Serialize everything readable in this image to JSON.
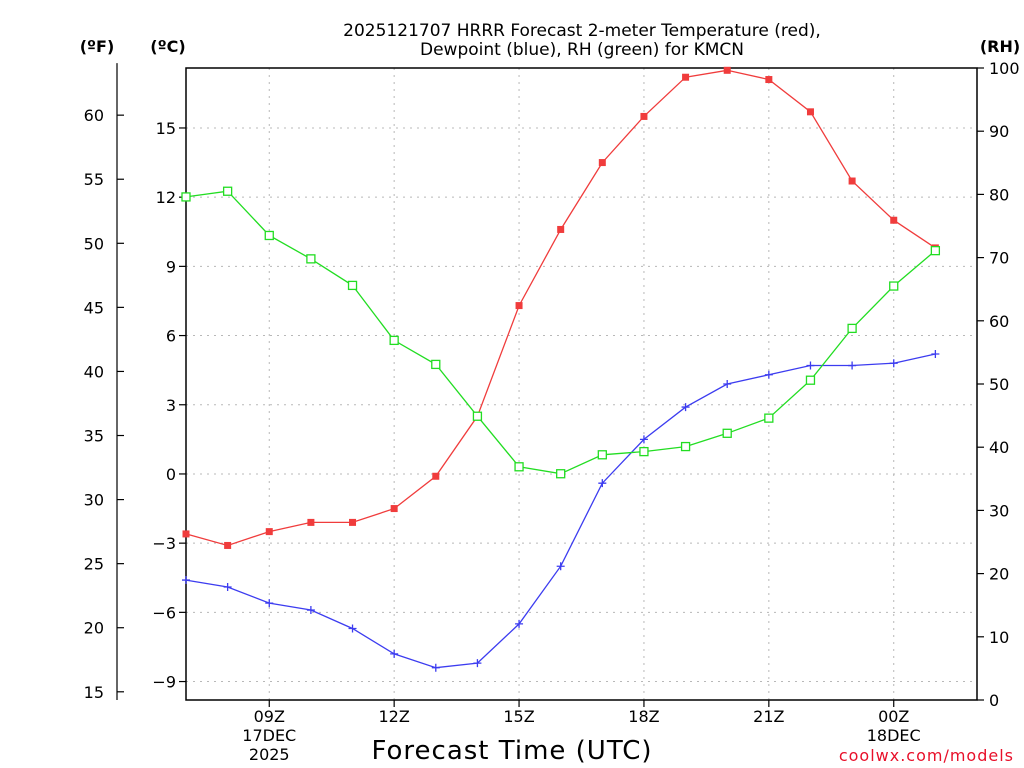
{
  "chart_data": {
    "type": "line",
    "title_line1": "2025121707 HRRR Forecast 2-meter Temperature (red),",
    "title_line2": "Dewpoint (blue), RH (green) for KMCN",
    "units": {
      "fahrenheit": "(ºF)",
      "celsius": "(ºC)",
      "rh": "(RH)"
    },
    "xlabel": "Forecast Time (UTC)",
    "credit": "coolwx.com/models",
    "x": [
      7,
      8,
      9,
      10,
      11,
      12,
      13,
      14,
      15,
      16,
      17,
      18,
      19,
      20,
      21,
      22,
      23,
      24,
      25
    ],
    "xlim": [
      7,
      26
    ],
    "x_ticks": [
      {
        "hour": 9,
        "label": "09Z",
        "sub1": "17DEC",
        "sub2": "2025"
      },
      {
        "hour": 12,
        "label": "12Z",
        "sub1": "",
        "sub2": ""
      },
      {
        "hour": 15,
        "label": "15Z",
        "sub1": "",
        "sub2": ""
      },
      {
        "hour": 18,
        "label": "18Z",
        "sub1": "",
        "sub2": ""
      },
      {
        "hour": 21,
        "label": "21Z",
        "sub1": "",
        "sub2": ""
      },
      {
        "hour": 24,
        "label": "00Z",
        "sub1": "18DEC",
        "sub2": ""
      }
    ],
    "celsius_axis": {
      "ylim": [
        -9.8,
        17.6
      ],
      "ticks": [
        -9,
        -6,
        -3,
        0,
        3,
        6,
        9,
        12,
        15
      ],
      "tick_labels": [
        "−9",
        "−6",
        "−3",
        "0",
        "3",
        "6",
        "9",
        "12",
        "15"
      ]
    },
    "fahrenheit_axis": {
      "ticks": [
        15,
        20,
        25,
        30,
        35,
        40,
        45,
        50,
        55,
        60
      ]
    },
    "rh_axis": {
      "ylim": [
        0,
        100
      ],
      "ticks": [
        0,
        10,
        20,
        30,
        40,
        50,
        60,
        70,
        80,
        90,
        100
      ]
    },
    "series": [
      {
        "name": "Temperature",
        "color": "#f03c3c",
        "marker": "filled-square",
        "axis": "celsius",
        "values": [
          -2.6,
          -3.1,
          -2.5,
          -2.1,
          -2.1,
          -1.5,
          -0.1,
          2.5,
          7.3,
          10.6,
          13.5,
          15.5,
          17.2,
          17.5,
          17.1,
          15.7,
          12.7,
          11.0,
          9.8
        ]
      },
      {
        "name": "Dewpoint",
        "color": "#3c3cf0",
        "marker": "plus",
        "axis": "celsius",
        "values": [
          -4.6,
          -4.9,
          -5.6,
          -5.9,
          -6.7,
          -7.8,
          -8.4,
          -8.2,
          -6.5,
          -4.0,
          -0.4,
          1.5,
          2.9,
          3.9,
          4.3,
          4.7,
          4.7,
          4.8,
          5.2
        ]
      },
      {
        "name": "RH",
        "color": "#22dd22",
        "marker": "open-square",
        "axis": "rh",
        "values": [
          79.6,
          80.5,
          73.5,
          69.8,
          65.6,
          56.9,
          53.1,
          44.9,
          36.9,
          35.8,
          38.8,
          39.3,
          40.1,
          42.2,
          44.6,
          50.6,
          58.8,
          65.5,
          71.1
        ]
      }
    ]
  }
}
